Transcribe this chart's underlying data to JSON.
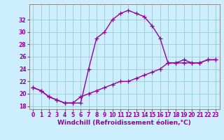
{
  "xlabel": "Windchill (Refroidissement éolien,°C)",
  "background_color": "#cceeff",
  "line_color": "#990099",
  "grid_color": "#99cccc",
  "hours": [
    0,
    1,
    2,
    3,
    4,
    5,
    6,
    7,
    8,
    9,
    10,
    11,
    12,
    13,
    14,
    15,
    16,
    17,
    18,
    19,
    20,
    21,
    22,
    23
  ],
  "temp": [
    21.0,
    20.5,
    19.5,
    19.0,
    18.5,
    18.5,
    18.5,
    24.0,
    29.0,
    30.0,
    32.0,
    33.0,
    33.5,
    33.0,
    32.5,
    31.0,
    29.0,
    25.0,
    25.0,
    25.5,
    25.0,
    25.0,
    25.5,
    25.5
  ],
  "windchill": [
    21.0,
    20.5,
    19.5,
    19.0,
    18.5,
    18.5,
    19.5,
    20.0,
    20.5,
    21.0,
    21.5,
    22.0,
    22.0,
    22.5,
    23.0,
    23.5,
    24.0,
    25.0,
    25.0,
    25.0,
    25.0,
    25.0,
    25.5,
    25.5
  ],
  "ylim": [
    17.5,
    34.5
  ],
  "yticks": [
    18,
    20,
    22,
    24,
    26,
    28,
    30,
    32
  ],
  "xlim": [
    -0.5,
    23.5
  ],
  "xticks": [
    0,
    1,
    2,
    3,
    4,
    5,
    6,
    7,
    8,
    9,
    10,
    11,
    12,
    13,
    14,
    15,
    16,
    17,
    18,
    19,
    20,
    21,
    22,
    23
  ],
  "tick_fontsize": 5.5,
  "xlabel_fontsize": 6.5,
  "linewidth": 1.0,
  "markersize": 4,
  "markeredgewidth": 0.9
}
